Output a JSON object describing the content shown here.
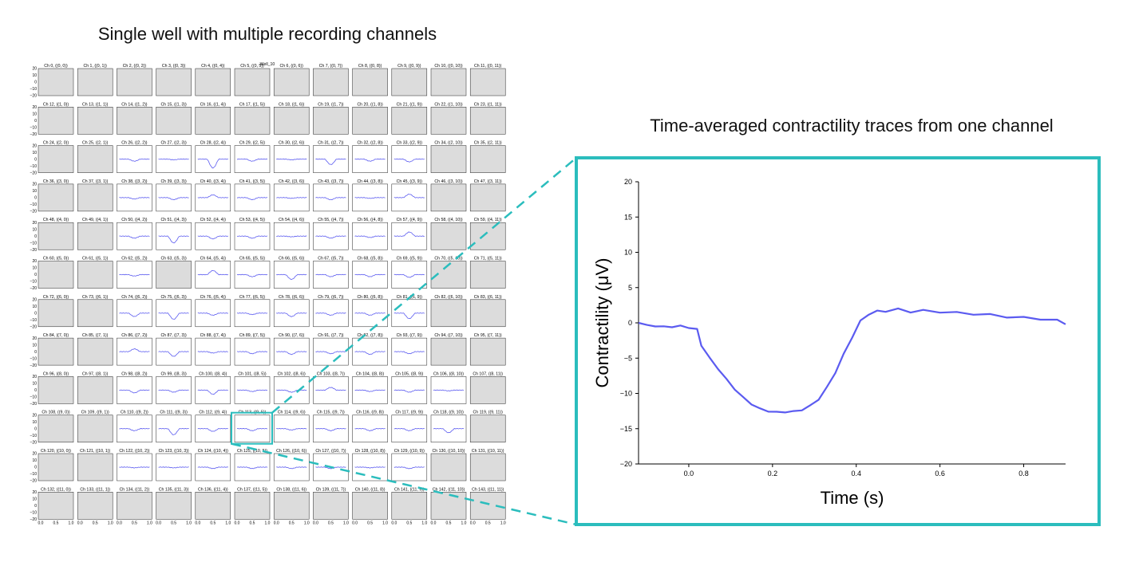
{
  "figure": {
    "left_title": "Single well with multiple recording channels",
    "right_title": "Time-averaged contractility traces from one channel",
    "overlap_label": "Well_10",
    "highlight_color": "#2bbdbd",
    "trace_color": "#5b5bf0",
    "inactive_fill": "#dcdcdc",
    "highlighted_channel": 113
  },
  "chart_data": [
    {
      "type": "line",
      "name": "channel-grid",
      "rows": 12,
      "cols": 12,
      "ylim": [
        -20,
        20
      ],
      "xlim": [
        0.0,
        1.0
      ],
      "yticks": [
        "20",
        "10",
        "0",
        "−10",
        "−20"
      ],
      "xticks": [
        "0.0",
        "0.5",
        "1.0"
      ],
      "panel_titles": [
        "Ch 0, ((0, 0))",
        "Ch 1, ((0, 1))",
        "Ch 2, ((0, 2))",
        "Ch 3, ((0, 3))",
        "Ch 4, ((0, 4))",
        "Ch 5, ((0, 5))",
        "Ch 6, ((0, 6))",
        "Ch 7, ((0, 7))",
        "Ch 8, ((0, 8))",
        "Ch 9, ((0, 9))",
        "Ch 10, ((0, 10))",
        "Ch 11, ((0, 11))",
        "Ch 12, ((1, 0))",
        "Ch 13, ((1, 1))",
        "Ch 14, ((1, 2))",
        "Ch 15, ((1, 3))",
        "Ch 16, ((1, 4))",
        "Ch 17, ((1, 5))",
        "Ch 18, ((1, 6))",
        "Ch 19, ((1, 7))",
        "Ch 20, ((1, 8))",
        "Ch 21, ((1, 9))",
        "Ch 22, ((1, 10))",
        "Ch 23, ((1, 11))",
        "Ch 24, ((2, 0))",
        "Ch 25, ((2, 1))",
        "Ch 26, ((2, 2))",
        "Ch 27, ((2, 3))",
        "Ch 28, ((2, 4))",
        "Ch 29, ((2, 5))",
        "Ch 30, ((2, 6))",
        "Ch 31, ((2, 7))",
        "Ch 32, ((2, 8))",
        "Ch 33, ((2, 9))",
        "Ch 34, ((2, 10))",
        "Ch 35, ((2, 11))",
        "Ch 36, ((3, 0))",
        "Ch 37, ((3, 1))",
        "Ch 38, ((3, 2))",
        "Ch 39, ((3, 3))",
        "Ch 40, ((3, 4))",
        "Ch 41, ((3, 5))",
        "Ch 42, ((3, 6))",
        "Ch 43, ((3, 7))",
        "Ch 44, ((3, 8))",
        "Ch 45, ((3, 9))",
        "Ch 46, ((3, 10))",
        "Ch 47, ((3, 11))",
        "Ch 48, ((4, 0))",
        "Ch 49, ((4, 1))",
        "Ch 50, ((4, 2))",
        "Ch 51, ((4, 3))",
        "Ch 52, ((4, 4))",
        "Ch 53, ((4, 5))",
        "Ch 54, ((4, 6))",
        "Ch 55, ((4, 7))",
        "Ch 56, ((4, 8))",
        "Ch 57, ((4, 9))",
        "Ch 58, ((4, 10))",
        "Ch 59, ((4, 11))",
        "Ch 60, ((5, 0))",
        "Ch 61, ((5, 1))",
        "Ch 62, ((5, 2))",
        "Ch 63, ((5, 3))",
        "Ch 64, ((5, 4))",
        "Ch 65, ((5, 5))",
        "Ch 66, ((5, 6))",
        "Ch 67, ((5, 7))",
        "Ch 68, ((5, 8))",
        "Ch 69, ((5, 9))",
        "Ch 70, ((5, 10))",
        "Ch 71, ((5, 11))",
        "Ch 72, ((6, 0))",
        "Ch 73, ((6, 1))",
        "Ch 74, ((6, 2))",
        "Ch 75, ((6, 3))",
        "Ch 76, ((6, 4))",
        "Ch 77, ((6, 5))",
        "Ch 78, ((6, 6))",
        "Ch 79, ((6, 7))",
        "Ch 80, ((6, 8))",
        "Ch 81, ((6, 9))",
        "Ch 82, ((6, 10))",
        "Ch 83, ((6, 11))",
        "Ch 84, ((7, 0))",
        "Ch 85, ((7, 1))",
        "Ch 86, ((7, 2))",
        "Ch 87, ((7, 3))",
        "Ch 88, ((7, 4))",
        "Ch 89, ((7, 5))",
        "Ch 90, ((7, 6))",
        "Ch 91, ((7, 7))",
        "Ch 92, ((7, 8))",
        "Ch 93, ((7, 9))",
        "Ch 94, ((7, 10))",
        "Ch 95, ((7, 11))",
        "Ch 96, ((8, 0))",
        "Ch 97, ((8, 1))",
        "Ch 98, ((8, 2))",
        "Ch 99, ((8, 3))",
        "Ch 100, ((8, 4))",
        "Ch 101, ((8, 5))",
        "Ch 102, ((8, 6))",
        "Ch 103, ((8, 7))",
        "Ch 104, ((8, 8))",
        "Ch 105, ((8, 9))",
        "Ch 106, ((8, 10))",
        "Ch 107, ((8, 11))",
        "Ch 108, ((9, 0))",
        "Ch 109, ((9, 1))",
        "Ch 110, ((9, 2))",
        "Ch 111, ((9, 3))",
        "Ch 112, ((9, 4))",
        "Ch 113, ((9, 5))",
        "Ch 114, ((9, 6))",
        "Ch 115, ((9, 7))",
        "Ch 116, ((9, 8))",
        "Ch 117, ((9, 9))",
        "Ch 118, ((9, 10))",
        "Ch 119, ((9, 11))",
        "Ch 120, ((10, 0))",
        "Ch 121, ((10, 1))",
        "Ch 122, ((10, 2))",
        "Ch 123, ((10, 3))",
        "Ch 124, ((10, 4))",
        "Ch 125, ((10, 5))",
        "Ch 126, ((10, 6))",
        "Ch 127, ((10, 7))",
        "Ch 128, ((10, 8))",
        "Ch 129, ((10, 9))",
        "Ch 130, ((10, 10))",
        "Ch 131, ((10, 11))",
        "Ch 132, ((11, 0))",
        "Ch 133, ((11, 1))",
        "Ch 134, ((11, 2))",
        "Ch 135, ((11, 3))",
        "Ch 136, ((11, 4))",
        "Ch 137, ((11, 5))",
        "Ch 138, ((11, 6))",
        "Ch 139, ((11, 7))",
        "Ch 140, ((11, 8))",
        "Ch 141, ((11, 9))",
        "Ch 142, ((11, 10))",
        "Ch 143, ((11, 11))"
      ],
      "inactive_channels": [
        0,
        1,
        2,
        3,
        4,
        5,
        6,
        7,
        8,
        9,
        10,
        11,
        12,
        13,
        14,
        15,
        16,
        17,
        18,
        19,
        20,
        21,
        22,
        23,
        24,
        25,
        34,
        35,
        36,
        37,
        46,
        47,
        48,
        49,
        58,
        59,
        60,
        61,
        63,
        70,
        71,
        72,
        73,
        82,
        83,
        84,
        85,
        94,
        95,
        96,
        97,
        107,
        108,
        109,
        119,
        120,
        121,
        130,
        131,
        132,
        133,
        134,
        135,
        136,
        137,
        138,
        139,
        140,
        141,
        142,
        143
      ],
      "trough_depths": {
        "26": -3,
        "27": -1,
        "28": -13,
        "29": -3,
        "30": -1,
        "31": -8,
        "32": -3,
        "33": -4,
        "38": -2,
        "39": -3,
        "40": 4,
        "41": -3,
        "42": -1,
        "43": -3,
        "44": -1,
        "45": 5,
        "50": -3,
        "51": -10,
        "52": -4,
        "53": -3,
        "54": -1,
        "55": -3,
        "56": -2,
        "57": 6,
        "62": -2,
        "64": 6,
        "65": -3,
        "66": -7,
        "67": -3,
        "68": -3,
        "69": -4,
        "74": -5,
        "75": -9,
        "76": -3,
        "77": -2,
        "78": -5,
        "79": -3,
        "80": -3,
        "81": -8,
        "86": 4,
        "87": -7,
        "88": -2,
        "89": -3,
        "90": -4,
        "91": -3,
        "92": -4,
        "93": -3,
        "98": -4,
        "99": -3,
        "100": -6,
        "101": -2,
        "102": -3,
        "103": 4,
        "104": -2,
        "105": -3,
        "106": -1,
        "110": -3,
        "111": -9,
        "112": -4,
        "113": -3,
        "114": -2,
        "115": -3,
        "116": -3,
        "117": -3,
        "118": -6,
        "122": -1,
        "123": -1,
        "124": -2,
        "125": -2,
        "126": -2,
        "127": -2,
        "128": -1,
        "129": -2
      }
    },
    {
      "type": "line",
      "name": "detail-trace",
      "xlabel": "Time (s)",
      "ylabel": "Contractility  (μV)",
      "xlim": [
        -0.12,
        0.9
      ],
      "ylim": [
        -20,
        20
      ],
      "xticks": [
        0.0,
        0.2,
        0.4,
        0.6,
        0.8
      ],
      "yticks": [
        -20,
        -15,
        -10,
        -5,
        0,
        5,
        10,
        15,
        20
      ],
      "x": [
        -0.12,
        -0.1,
        -0.08,
        -0.06,
        -0.04,
        -0.02,
        0.0,
        0.02,
        0.03,
        0.05,
        0.07,
        0.09,
        0.11,
        0.13,
        0.15,
        0.17,
        0.19,
        0.21,
        0.23,
        0.25,
        0.27,
        0.29,
        0.31,
        0.33,
        0.35,
        0.37,
        0.39,
        0.41,
        0.43,
        0.45,
        0.47,
        0.5,
        0.53,
        0.56,
        0.6,
        0.64,
        0.68,
        0.72,
        0.76,
        0.8,
        0.84,
        0.88,
        0.9
      ],
      "y": [
        0.0,
        -0.3,
        -0.5,
        -0.5,
        -0.6,
        -0.4,
        -0.7,
        -0.9,
        -3.2,
        -5.0,
        -6.5,
        -8.0,
        -9.4,
        -10.6,
        -11.5,
        -12.2,
        -12.5,
        -12.7,
        -12.6,
        -12.6,
        -12.3,
        -11.8,
        -10.8,
        -9.2,
        -7.0,
        -4.5,
        -2.0,
        0.2,
        1.3,
        1.6,
        1.7,
        1.9,
        1.6,
        1.7,
        1.6,
        1.4,
        1.3,
        1.1,
        0.9,
        0.7,
        0.6,
        0.3,
        -0.2
      ]
    }
  ]
}
